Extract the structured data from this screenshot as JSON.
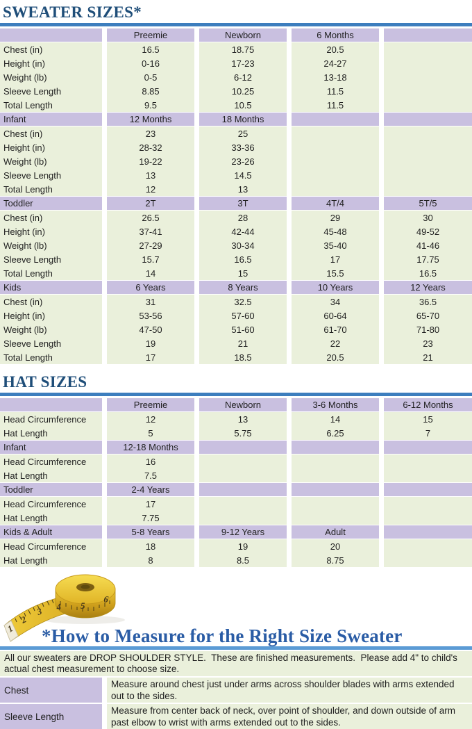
{
  "colors": {
    "heading_navy": "#1F4E79",
    "howto_blue": "#2A5CA5",
    "rule_dark_blue": "#3D7EBE",
    "rule_light_blue": "#5B9BD5",
    "row_purple": "#C9C0E0",
    "row_green": "#EAF0DB",
    "tape_yellow": "#E9C227"
  },
  "sweater": {
    "title": "SWEATER SIZES*",
    "groups": [
      {
        "header": [
          "",
          "Preemie",
          "Newborn",
          "6 Months",
          ""
        ],
        "rows": [
          [
            "Chest (in)",
            "16.5",
            "18.75",
            "20.5",
            ""
          ],
          [
            "Height (in)",
            "0-16",
            "17-23",
            "24-27",
            ""
          ],
          [
            "Weight (lb)",
            "0-5",
            "6-12",
            "13-18",
            ""
          ],
          [
            "Sleeve Length",
            "8.85",
            "10.25",
            "11.5",
            ""
          ],
          [
            "Total Length",
            "9.5",
            "10.5",
            "11.5",
            ""
          ]
        ]
      },
      {
        "header": [
          "Infant",
          "12 Months",
          "18 Months",
          "",
          ""
        ],
        "rows": [
          [
            "Chest (in)",
            "23",
            "25",
            "",
            ""
          ],
          [
            "Height (in)",
            "28-32",
            "33-36",
            "",
            ""
          ],
          [
            "Weight (lb)",
            "19-22",
            "23-26",
            "",
            ""
          ],
          [
            "Sleeve Length",
            "13",
            "14.5",
            "",
            ""
          ],
          [
            "Total Length",
            "12",
            "13",
            "",
            ""
          ]
        ]
      },
      {
        "header": [
          "Toddler",
          "2T",
          "3T",
          "4T/4",
          "5T/5"
        ],
        "rows": [
          [
            "Chest (in)",
            "26.5",
            "28",
            "29",
            "30"
          ],
          [
            "Height (in)",
            "37-41",
            "42-44",
            "45-48",
            "49-52"
          ],
          [
            "Weight (lb)",
            "27-29",
            "30-34",
            "35-40",
            "41-46"
          ],
          [
            "Sleeve Length",
            "15.7",
            "16.5",
            "17",
            "17.75"
          ],
          [
            "Total Length",
            "14",
            "15",
            "15.5",
            "16.5"
          ]
        ]
      },
      {
        "header": [
          "Kids",
          "6 Years",
          "8 Years",
          "10 Years",
          "12 Years"
        ],
        "rows": [
          [
            "Chest (in)",
            "31",
            "32.5",
            "34",
            "36.5"
          ],
          [
            "Height (in)",
            "53-56",
            "57-60",
            "60-64",
            "65-70"
          ],
          [
            "Weight (lb)",
            "47-50",
            "51-60",
            "61-70",
            "71-80"
          ],
          [
            "Sleeve Length",
            "19",
            "21",
            "22",
            "23"
          ],
          [
            "Total Length",
            "17",
            "18.5",
            "20.5",
            "21"
          ]
        ]
      }
    ]
  },
  "hat": {
    "title": "HAT SIZES",
    "groups": [
      {
        "header": [
          "",
          "Preemie",
          "Newborn",
          "3-6 Months",
          "6-12 Months"
        ],
        "rows": [
          [
            "Head Circumference",
            "12",
            "13",
            "14",
            "15"
          ],
          [
            "Hat Length",
            "5",
            "5.75",
            "6.25",
            "7"
          ]
        ]
      },
      {
        "header": [
          "Infant",
          "12-18 Months",
          "",
          "",
          ""
        ],
        "rows": [
          [
            "Head Circumference",
            "16",
            "",
            "",
            ""
          ],
          [
            "Hat Length",
            "7.5",
            "",
            "",
            ""
          ]
        ]
      },
      {
        "header": [
          "Toddler",
          "2-4 Years",
          "",
          "",
          ""
        ],
        "rows": [
          [
            "Head Circumference",
            "17",
            "",
            "",
            ""
          ],
          [
            "Hat Length",
            "7.75",
            "",
            "",
            ""
          ]
        ]
      },
      {
        "header": [
          "Kids & Adult",
          "5-8 Years",
          "9-12 Years",
          "Adult",
          ""
        ],
        "rows": [
          [
            "Head Circumference",
            "18",
            "19",
            "20",
            ""
          ],
          [
            "Hat Length",
            "8",
            "8.5",
            "8.75",
            ""
          ]
        ]
      }
    ]
  },
  "measure": {
    "title": "*How to Measure for the Right Size Sweater",
    "note": "All our sweaters are DROP SHOULDER STYLE.  These are finished measurements.  Please add 4\" to child's actual chest measurement to choose size.",
    "rows": [
      {
        "label": "Chest",
        "text": "Measure around chest just under arms across shoulder blades with arms extended out to the sides."
      },
      {
        "label": "Sleeve Length",
        "text": "Measure from center back of neck, over point of shoulder, and down outside of arm past elbow to wrist with arms extended out to the sides."
      }
    ],
    "tape_numbers": [
      "1",
      "2",
      "3",
      "4",
      "5",
      "6"
    ]
  }
}
